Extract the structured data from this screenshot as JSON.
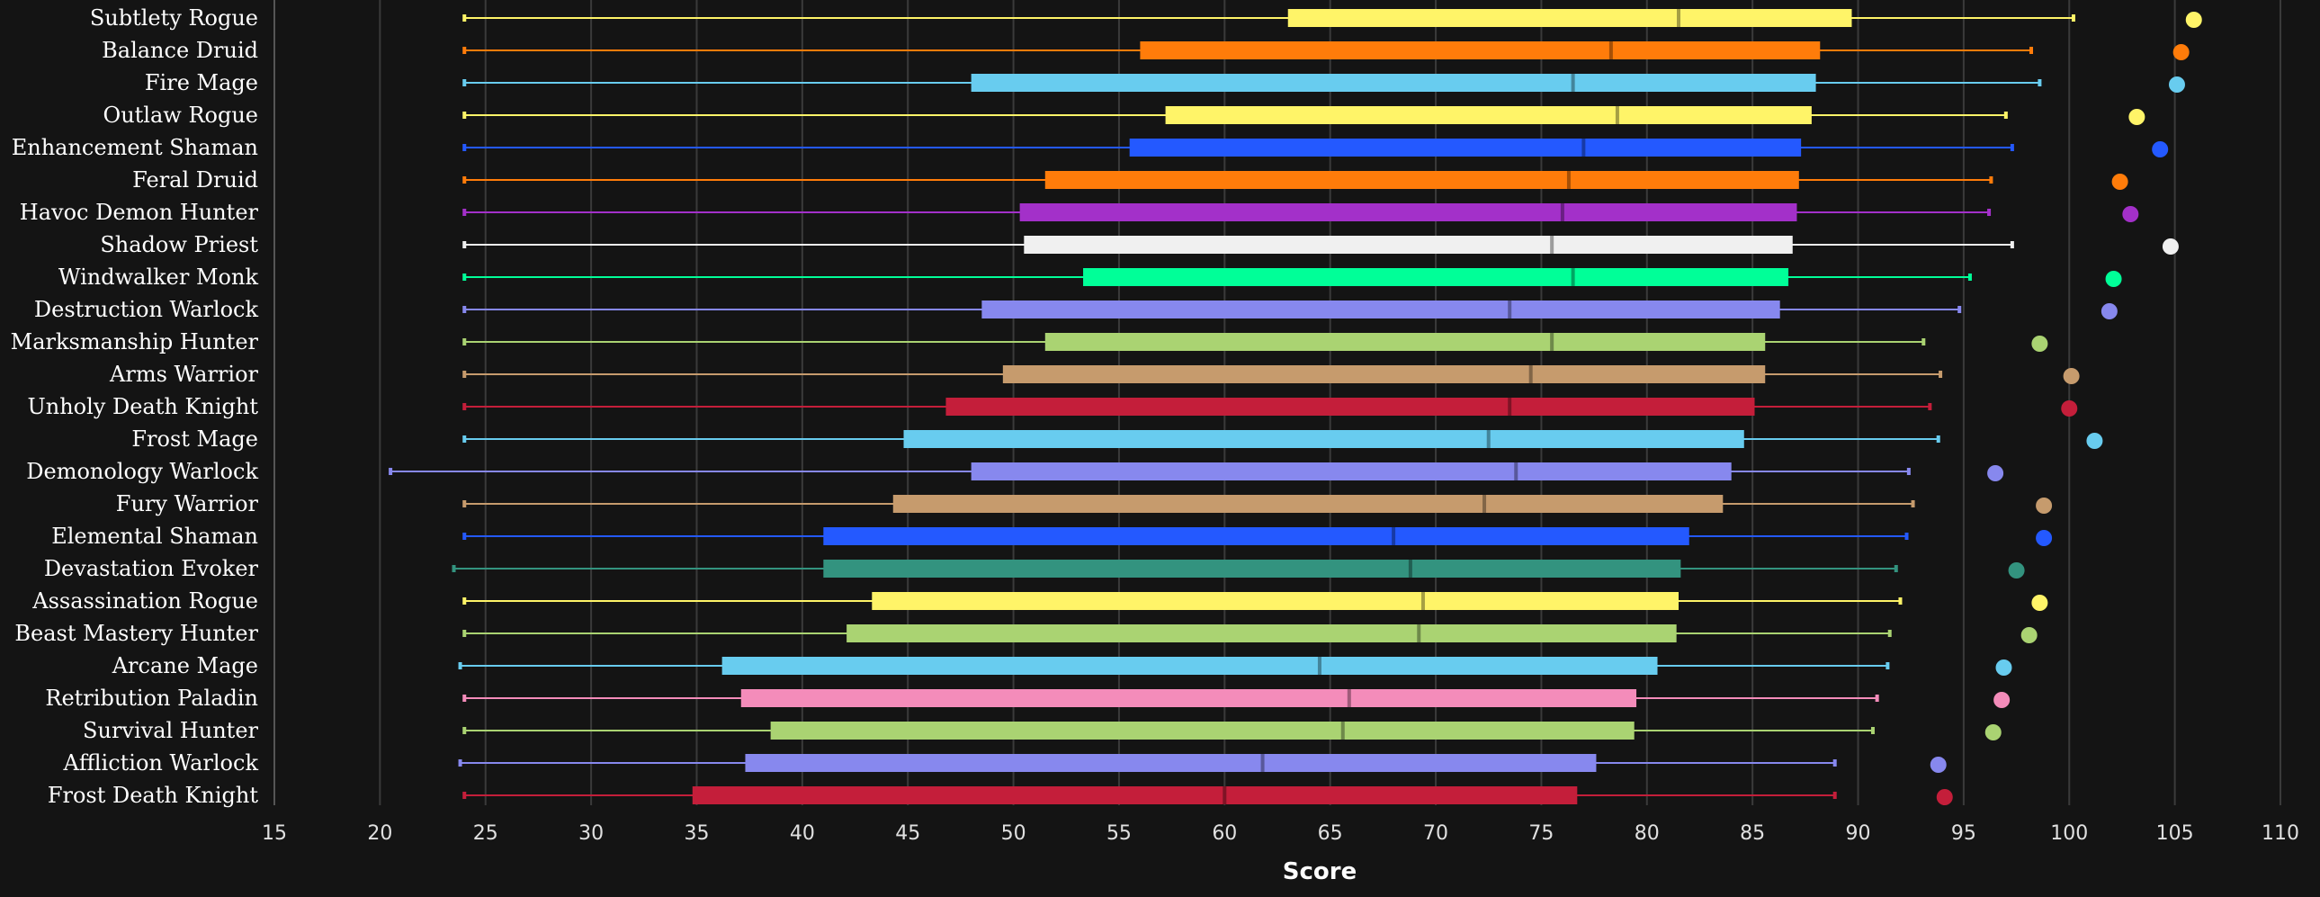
{
  "chart_data": {
    "type": "box",
    "xlabel": "Score",
    "xlim": [
      15,
      110
    ],
    "xticks": [
      15,
      20,
      25,
      30,
      35,
      40,
      45,
      50,
      55,
      60,
      65,
      70,
      75,
      80,
      85,
      90,
      95,
      100,
      105,
      110
    ],
    "grid": true,
    "legend": "none",
    "series": [
      {
        "name": "Subtlety Rogue",
        "color": "#FFF468",
        "min": 24.0,
        "q1": 63.0,
        "median": 81.5,
        "q3": 89.7,
        "max": 100.2,
        "top": 105.9
      },
      {
        "name": "Balance Druid",
        "color": "#FF7C0A",
        "min": 24.0,
        "q1": 56.0,
        "median": 78.3,
        "q3": 88.2,
        "max": 98.2,
        "top": 105.3
      },
      {
        "name": "Fire Mage",
        "color": "#68CCEF",
        "min": 24.0,
        "q1": 48.0,
        "median": 76.5,
        "q3": 88.0,
        "max": 98.6,
        "top": 105.1
      },
      {
        "name": "Outlaw Rogue",
        "color": "#FFF468",
        "min": 24.0,
        "q1": 57.2,
        "median": 78.6,
        "q3": 87.8,
        "max": 97.0,
        "top": 103.2
      },
      {
        "name": "Enhancement Shaman",
        "color": "#2459FF",
        "min": 24.0,
        "q1": 55.5,
        "median": 77.0,
        "q3": 87.3,
        "max": 97.3,
        "top": 104.3
      },
      {
        "name": "Feral Druid",
        "color": "#FF7C0A",
        "min": 24.0,
        "q1": 51.5,
        "median": 76.3,
        "q3": 87.2,
        "max": 96.3,
        "top": 102.4
      },
      {
        "name": "Havoc Demon Hunter",
        "color": "#A330C9",
        "min": 24.0,
        "q1": 50.3,
        "median": 76.0,
        "q3": 87.1,
        "max": 96.2,
        "top": 102.9
      },
      {
        "name": "Shadow Priest",
        "color": "#F0F0F0",
        "min": 24.0,
        "q1": 50.5,
        "median": 75.5,
        "q3": 86.9,
        "max": 97.3,
        "top": 104.8
      },
      {
        "name": "Windwalker Monk",
        "color": "#00FF98",
        "min": 24.0,
        "q1": 53.3,
        "median": 76.5,
        "q3": 86.7,
        "max": 95.3,
        "top": 102.1
      },
      {
        "name": "Destruction Warlock",
        "color": "#8788EE",
        "min": 24.0,
        "q1": 48.5,
        "median": 73.5,
        "q3": 86.3,
        "max": 94.8,
        "top": 101.9
      },
      {
        "name": "Marksmanship Hunter",
        "color": "#AAD372",
        "min": 24.0,
        "q1": 51.5,
        "median": 75.5,
        "q3": 85.6,
        "max": 93.1,
        "top": 98.6
      },
      {
        "name": "Arms Warrior",
        "color": "#C69B6D",
        "min": 24.0,
        "q1": 49.5,
        "median": 74.5,
        "q3": 85.6,
        "max": 93.9,
        "top": 100.1
      },
      {
        "name": "Unholy Death Knight",
        "color": "#C41E3A",
        "min": 24.0,
        "q1": 46.8,
        "median": 73.5,
        "q3": 85.1,
        "max": 93.4,
        "top": 100.0
      },
      {
        "name": "Frost Mage",
        "color": "#68CCEF",
        "min": 24.0,
        "q1": 44.8,
        "median": 72.5,
        "q3": 84.6,
        "max": 93.8,
        "top": 101.2
      },
      {
        "name": "Demonology Warlock",
        "color": "#8788EE",
        "min": 20.5,
        "q1": 48.0,
        "median": 73.8,
        "q3": 84.0,
        "max": 92.4,
        "top": 96.5
      },
      {
        "name": "Fury Warrior",
        "color": "#C69B6D",
        "min": 24.0,
        "q1": 44.3,
        "median": 72.3,
        "q3": 83.6,
        "max": 92.6,
        "top": 98.8
      },
      {
        "name": "Elemental Shaman",
        "color": "#2459FF",
        "min": 24.0,
        "q1": 41.0,
        "median": 68.0,
        "q3": 82.0,
        "max": 92.3,
        "top": 98.8
      },
      {
        "name": "Devastation Evoker",
        "color": "#33937F",
        "min": 23.5,
        "q1": 41.0,
        "median": 68.8,
        "q3": 81.6,
        "max": 91.8,
        "top": 97.5
      },
      {
        "name": "Assassination Rogue",
        "color": "#FFF468",
        "min": 24.0,
        "q1": 43.3,
        "median": 69.4,
        "q3": 81.5,
        "max": 92.0,
        "top": 98.6
      },
      {
        "name": "Beast Mastery Hunter",
        "color": "#AAD372",
        "min": 24.0,
        "q1": 42.1,
        "median": 69.2,
        "q3": 81.4,
        "max": 91.5,
        "top": 98.1
      },
      {
        "name": "Arcane Mage",
        "color": "#68CCEF",
        "min": 23.8,
        "q1": 36.2,
        "median": 64.5,
        "q3": 80.5,
        "max": 91.4,
        "top": 96.9
      },
      {
        "name": "Retribution Paladin",
        "color": "#F48CBA",
        "min": 24.0,
        "q1": 37.1,
        "median": 65.9,
        "q3": 79.5,
        "max": 90.9,
        "top": 96.8
      },
      {
        "name": "Survival Hunter",
        "color": "#AAD372",
        "min": 24.0,
        "q1": 38.5,
        "median": 65.6,
        "q3": 79.4,
        "max": 90.7,
        "top": 96.4
      },
      {
        "name": "Affliction Warlock",
        "color": "#8788EE",
        "min": 23.8,
        "q1": 37.3,
        "median": 61.8,
        "q3": 77.6,
        "max": 88.9,
        "top": 93.8
      },
      {
        "name": "Frost Death Knight",
        "color": "#C41E3A",
        "min": 24.0,
        "q1": 34.8,
        "median": 60.0,
        "q3": 76.7,
        "max": 88.9,
        "top": 94.1
      }
    ]
  }
}
